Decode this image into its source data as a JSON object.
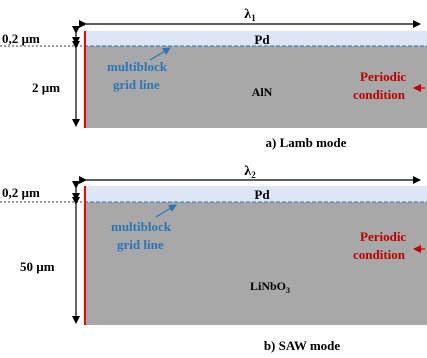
{
  "panels": [
    {
      "wavelength": "λ",
      "wavelength_sub": "1",
      "top_layer": "Pd",
      "substrate": "AlN",
      "top_thickness": "0,2 µm",
      "substrate_thickness": "2 µm",
      "grid_label_line1": "multiblock",
      "grid_label_line2": "grid line",
      "periodic_line1": "Periodic",
      "periodic_line2": "condition",
      "caption": "a) Lamb mode"
    },
    {
      "wavelength": "λ",
      "wavelength_sub": "2",
      "top_layer": "Pd",
      "substrate": "LiNbO",
      "substrate_sub": "3",
      "top_thickness": "0,2 µm",
      "substrate_thickness": "50 µm",
      "grid_label_line1": "multiblock",
      "grid_label_line2": "grid line",
      "periodic_line1": "Periodic",
      "periodic_line2": "condition",
      "caption": "b) SAW mode"
    }
  ],
  "colors": {
    "top_layer": "#dde6f4",
    "substrate": "#a8a8a8",
    "grid_line": "#2e75b6",
    "boundary": "#ff0000",
    "periodic_text": "#c00000",
    "grid_text": "#2e75b6"
  }
}
